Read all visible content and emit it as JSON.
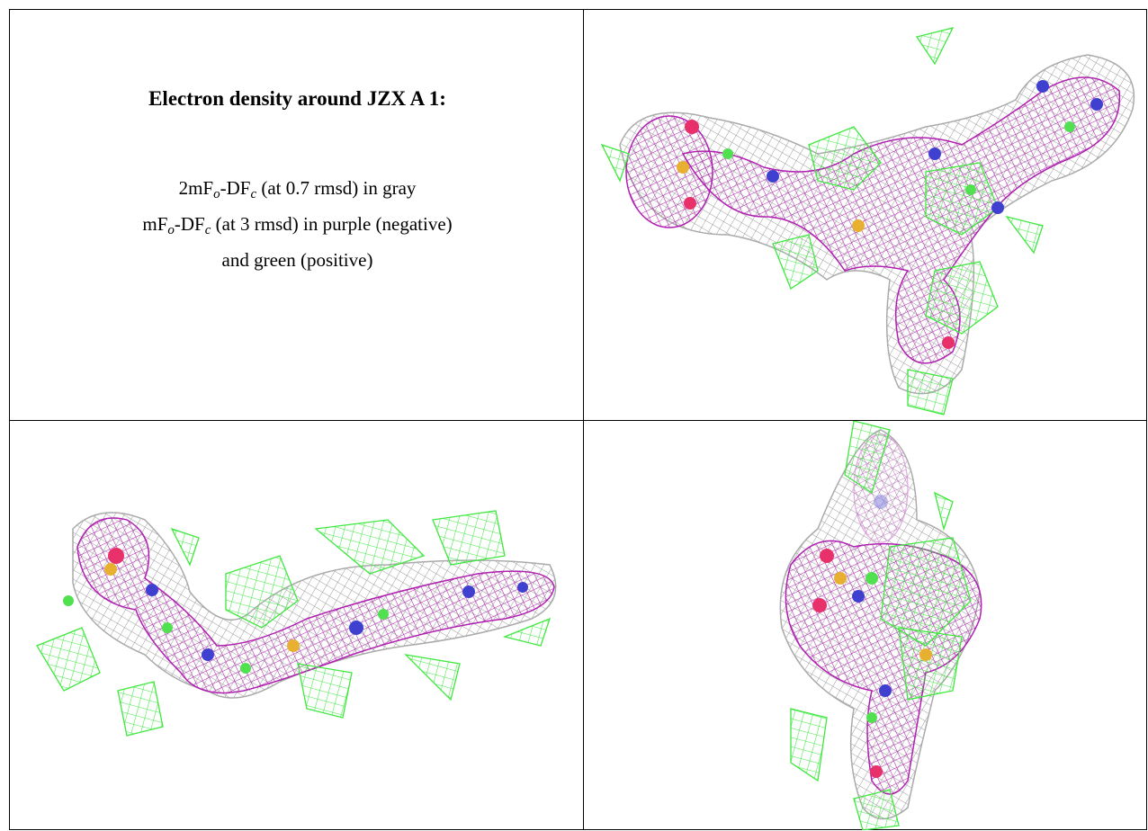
{
  "caption": {
    "title": "Electron density around JZX A 1:",
    "lines": [
      {
        "prefix": "2mF",
        "sub1": "o",
        "mid": "-DF",
        "sub2": "c",
        "rest": "(at 0.7 rmsd) in gray"
      },
      {
        "prefix": "mF",
        "sub1": "o",
        "mid": "-DF",
        "sub2": "c",
        "rest": "(at 3 rmsd) in purple (negative)"
      },
      {
        "text": "and green (positive)"
      }
    ]
  }
}
